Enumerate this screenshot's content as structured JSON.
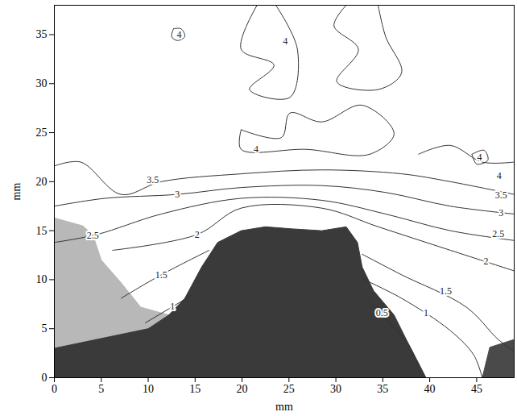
{
  "chart_data": {
    "type": "contour",
    "x_label": "mm",
    "y_label": "mm",
    "xlim": [
      0,
      49
    ],
    "ylim": [
      0,
      38
    ],
    "xticks": [
      0,
      5,
      10,
      15,
      20,
      25,
      30,
      35,
      40,
      45
    ],
    "yticks": [
      0,
      5,
      10,
      15,
      20,
      25,
      30,
      35
    ],
    "grid": false,
    "regions": [
      {
        "color": "#b8b8b8",
        "x": [
          0,
          3,
          4.1,
          5,
          7.1,
          9.2,
          12.2,
          10,
          5,
          0
        ],
        "y": [
          16.3,
          15.5,
          14.6,
          12,
          9.7,
          7.2,
          6.4,
          5,
          4,
          3
        ]
      },
      {
        "color": "#3a3a3a",
        "x": [
          12.2,
          13.9,
          15.7,
          17.4,
          19.9,
          22.5,
          25.1,
          28.5,
          31.1,
          32.3,
          32.8,
          34.0,
          36.2,
          37.5,
          38.8,
          39.6,
          0,
          0,
          5,
          10,
          12.2
        ],
        "y": [
          6.4,
          8.1,
          11.3,
          13.8,
          15.0,
          15.4,
          15.2,
          15.0,
          15.4,
          13.8,
          11.3,
          8.9,
          6.4,
          3.9,
          1.5,
          0,
          0,
          3,
          4,
          5,
          6.4
        ]
      },
      {
        "color": "#4a4a4a",
        "x": [
          45.6,
          46.4,
          49,
          49,
          45.6
        ],
        "y": [
          0,
          3.1,
          3.9,
          0,
          0
        ]
      }
    ],
    "series": [
      {
        "name": "4",
        "x": [
          12.7,
          13.5,
          13.9,
          13.1,
          12.5,
          12.7
        ],
        "y": [
          35.6,
          35.6,
          34.8,
          34.4,
          34.8,
          35.6
        ],
        "label_points": [
          [
            13.3,
            35.0
          ]
        ]
      },
      {
        "name": "4",
        "x": [
          21.6,
          19.9,
          23.4,
          20.8,
          25.1,
          25.9,
          23.6
        ],
        "y": [
          38.0,
          33.5,
          31.9,
          29.4,
          28.6,
          33.5,
          38.0
        ],
        "label_points": [
          [
            24.6,
            34.3
          ]
        ]
      },
      {
        "name": "4",
        "x": [
          31.1,
          29.8,
          32.4,
          30.1,
          34.5,
          37.0,
          35.3,
          34.5
        ],
        "y": [
          38.0,
          35.9,
          33.5,
          30.2,
          29.4,
          31.1,
          34.8,
          38.0
        ],
        "label_points": []
      },
      {
        "name": "4",
        "x": [
          19.9,
          24.2,
          25.1,
          28.5,
          32.8,
          36.2,
          33.6,
          26.8,
          19.9,
          19.9
        ],
        "y": [
          25.3,
          24.5,
          27.0,
          26.1,
          27.8,
          24.9,
          22.8,
          23.3,
          23.3,
          25.3
        ],
        "label_points": [
          [
            21.5,
            23.3
          ]
        ]
      },
      {
        "name": "4",
        "x": [
          38.8,
          42.2,
          45.6,
          49.0
        ],
        "y": [
          22.8,
          23.7,
          22.0,
          22.0
        ],
        "label_points": [
          [
            47.4,
            20.6
          ]
        ]
      },
      {
        "name": "4",
        "x": [
          44.5,
          45.8,
          46.2,
          45.0,
          44.5
        ],
        "y": [
          22.8,
          23.2,
          22.2,
          21.8,
          22.8
        ],
        "label_points": [
          [
            45.3,
            22.5
          ]
        ]
      },
      {
        "name": "3.5",
        "x": [
          0,
          2.8,
          7.1,
          11.4,
          19.9,
          28.5,
          37.0,
          42.2,
          49.0
        ],
        "y": [
          21.6,
          22.0,
          18.7,
          20.0,
          20.8,
          21.2,
          20.8,
          20.0,
          18.7
        ],
        "label_points": [
          [
            10.5,
            20.2
          ],
          [
            47.6,
            18.6
          ]
        ]
      },
      {
        "name": "3",
        "x": [
          0,
          5.4,
          13.1,
          19.9,
          28.5,
          35.3,
          42.2,
          49.0
        ],
        "y": [
          17.5,
          18.3,
          18.7,
          19.4,
          19.6,
          18.9,
          17.5,
          16.7
        ],
        "label_points": [
          [
            13.1,
            18.7
          ],
          [
            47.6,
            16.8
          ]
        ]
      },
      {
        "name": "2.5",
        "x": [
          0,
          4.5,
          11.4,
          19.9,
          28.5,
          35.3,
          42.2,
          49.0
        ],
        "y": [
          13.8,
          14.6,
          16.7,
          18.3,
          18.1,
          16.7,
          15.0,
          14.0
        ],
        "label_points": [
          [
            4.1,
            14.5
          ],
          [
            47.3,
            14.7
          ]
        ]
      },
      {
        "name": "2",
        "x": [
          6.2,
          15.2,
          19.9,
          28.5,
          34.5,
          42.2,
          49.0
        ],
        "y": [
          13.0,
          14.6,
          17.3,
          17.3,
          15.4,
          13.0,
          10.9
        ],
        "label_points": [
          [
            15.2,
            14.6
          ],
          [
            46.0,
            11.9
          ]
        ]
      },
      {
        "name": "1.5",
        "x": [
          7.1,
          11.4,
          16.5
        ],
        "y": [
          8.1,
          10.5,
          13.0
        ],
        "label_points": [
          [
            11.4,
            10.5
          ]
        ]
      },
      {
        "name": "1.5",
        "x": [
          32.8,
          37.0,
          43.9,
          47.3,
          49.0
        ],
        "y": [
          12.6,
          10.5,
          7.2,
          3.9,
          2.7
        ],
        "label_points": [
          [
            41.7,
            8.8
          ]
        ]
      },
      {
        "name": "1",
        "x": [
          9.7,
          14.8
        ],
        "y": [
          5.6,
          8.5
        ],
        "label_points": [
          [
            12.6,
            7.3
          ]
        ]
      },
      {
        "name": "1",
        "x": [
          32.8,
          37.0,
          42.2,
          44.7,
          45.6
        ],
        "y": [
          10.1,
          8.1,
          4.8,
          2.3,
          0
        ],
        "label_points": [
          [
            39.6,
            6.6
          ]
        ]
      },
      {
        "name": "0.5",
        "x": [
          33.2,
          35.3,
          37.9,
          38.8
        ],
        "y": [
          8.1,
          6.0,
          3.1,
          1.1
        ],
        "label_points": [
          [
            34.9,
            6.6
          ]
        ]
      }
    ]
  }
}
